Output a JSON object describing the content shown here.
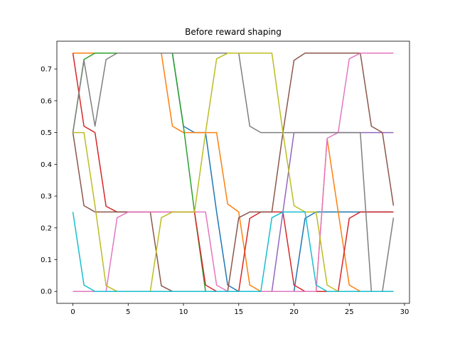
{
  "chart_data": {
    "type": "line",
    "title": "Before reward shaping",
    "xlabel": "",
    "ylabel": "",
    "xlim": [
      -1.45,
      30.45
    ],
    "ylim": [
      -0.0375,
      0.7875
    ],
    "x_ticks": [
      0,
      5,
      10,
      15,
      20,
      25,
      30
    ],
    "y_ticks": [
      0.0,
      0.1,
      0.2,
      0.3,
      0.4,
      0.5,
      0.6,
      0.7
    ],
    "y_tick_labels": [
      "0.0",
      "0.1",
      "0.2",
      "0.3",
      "0.4",
      "0.5",
      "0.6",
      "0.7"
    ],
    "x_tick_labels": [
      "0",
      "5",
      "10",
      "15",
      "20",
      "25",
      "30"
    ],
    "legend": "none",
    "grid": false,
    "x": [
      0,
      1,
      2,
      3,
      4,
      5,
      6,
      7,
      8,
      9,
      10,
      11,
      12,
      13,
      14,
      15,
      16,
      17,
      18,
      19,
      20,
      21,
      22,
      23,
      24,
      25,
      26,
      27,
      28,
      29
    ],
    "series": [
      {
        "color": "#1f77b4",
        "values": [
          0.75,
          0.75,
          0.75,
          0.75,
          0.75,
          0.75,
          0.75,
          0.75,
          0.75,
          0.75,
          0.52,
          0.5,
          0.5,
          0.25,
          0.02,
          0.0,
          0.0,
          0.0,
          0.0,
          0.0,
          0.0,
          0.23,
          0.25,
          0.25,
          0.25,
          0.25,
          0.25,
          0.25,
          0.25,
          0.25
        ]
      },
      {
        "color": "#ff7f0e",
        "values": [
          0.75,
          0.75,
          0.75,
          0.75,
          0.75,
          0.75,
          0.75,
          0.75,
          0.75,
          0.52,
          0.5,
          0.5,
          0.5,
          0.5,
          0.275,
          0.25,
          0.02,
          0.0,
          0.0,
          0.0,
          0.0,
          0.0,
          0.0,
          0.48,
          0.25,
          0.02,
          0.0,
          0.0,
          0.0,
          0.0
        ]
      },
      {
        "color": "#2ca02c",
        "values": [
          0.5,
          0.73,
          0.75,
          0.75,
          0.75,
          0.75,
          0.75,
          0.75,
          0.75,
          0.75,
          0.52,
          0.25,
          0.0,
          0.0,
          0.0,
          0.0,
          0.0,
          0.0,
          0.0,
          0.0,
          0.0,
          0.0,
          0.0,
          0.0,
          0.0,
          0.0,
          0.0,
          0.0,
          0.0,
          0.0
        ]
      },
      {
        "color": "#d62728",
        "values": [
          0.75,
          0.52,
          0.5,
          0.268,
          0.25,
          0.25,
          0.25,
          0.25,
          0.25,
          0.25,
          0.25,
          0.25,
          0.02,
          0.0,
          0.0,
          0.0,
          0.23,
          0.25,
          0.25,
          0.25,
          0.02,
          0.0,
          0.0,
          0.0,
          0.0,
          0.23,
          0.25,
          0.25,
          0.25,
          0.25
        ]
      },
      {
        "color": "#9467bd",
        "values": [
          0.0,
          0.0,
          0.0,
          0.0,
          0.0,
          0.0,
          0.0,
          0.0,
          0.0,
          0.0,
          0.0,
          0.0,
          0.0,
          0.0,
          0.0,
          0.0,
          0.0,
          0.0,
          0.0,
          0.25,
          0.5,
          0.5,
          0.5,
          0.5,
          0.5,
          0.5,
          0.5,
          0.5,
          0.5,
          0.5
        ]
      },
      {
        "color": "#8c564b",
        "values": [
          0.5,
          0.27,
          0.25,
          0.25,
          0.25,
          0.25,
          0.25,
          0.25,
          0.018,
          0.0,
          0.0,
          0.0,
          0.0,
          0.0,
          0.0,
          0.232,
          0.25,
          0.25,
          0.25,
          0.5,
          0.727,
          0.75,
          0.75,
          0.75,
          0.75,
          0.75,
          0.75,
          0.52,
          0.5,
          0.27
        ]
      },
      {
        "color": "#e377c2",
        "values": [
          0.0,
          0.0,
          0.0,
          0.0,
          0.232,
          0.25,
          0.25,
          0.25,
          0.25,
          0.25,
          0.25,
          0.25,
          0.25,
          0.02,
          0.0,
          0.0,
          0.0,
          0.0,
          0.0,
          0.0,
          0.0,
          0.0,
          0.0,
          0.482,
          0.5,
          0.732,
          0.75,
          0.75,
          0.75,
          0.75
        ]
      },
      {
        "color": "#7f7f7f",
        "values": [
          0.5,
          0.727,
          0.52,
          0.73,
          0.75,
          0.75,
          0.75,
          0.75,
          0.75,
          0.75,
          0.75,
          0.75,
          0.75,
          0.75,
          0.75,
          0.75,
          0.52,
          0.5,
          0.5,
          0.5,
          0.5,
          0.5,
          0.5,
          0.5,
          0.5,
          0.5,
          0.5,
          0.0,
          0.0,
          0.232
        ]
      },
      {
        "color": "#bcbd22",
        "values": [
          0.5,
          0.5,
          0.27,
          0.018,
          0.0,
          0.0,
          0.0,
          0.0,
          0.232,
          0.25,
          0.25,
          0.25,
          0.5,
          0.732,
          0.75,
          0.75,
          0.75,
          0.75,
          0.75,
          0.5,
          0.27,
          0.25,
          0.25,
          0.02,
          0.0,
          0.0,
          0.0,
          0.0,
          0.0,
          0.0
        ]
      },
      {
        "color": "#17becf",
        "values": [
          0.25,
          0.02,
          0.0,
          0.0,
          0.0,
          0.0,
          0.0,
          0.0,
          0.0,
          0.0,
          0.0,
          0.0,
          0.0,
          0.0,
          0.0,
          0.0,
          0.0,
          0.0,
          0.232,
          0.25,
          0.25,
          0.25,
          0.02,
          0.0,
          0.0,
          0.0,
          0.0,
          0.0,
          0.0,
          0.0
        ]
      }
    ]
  }
}
